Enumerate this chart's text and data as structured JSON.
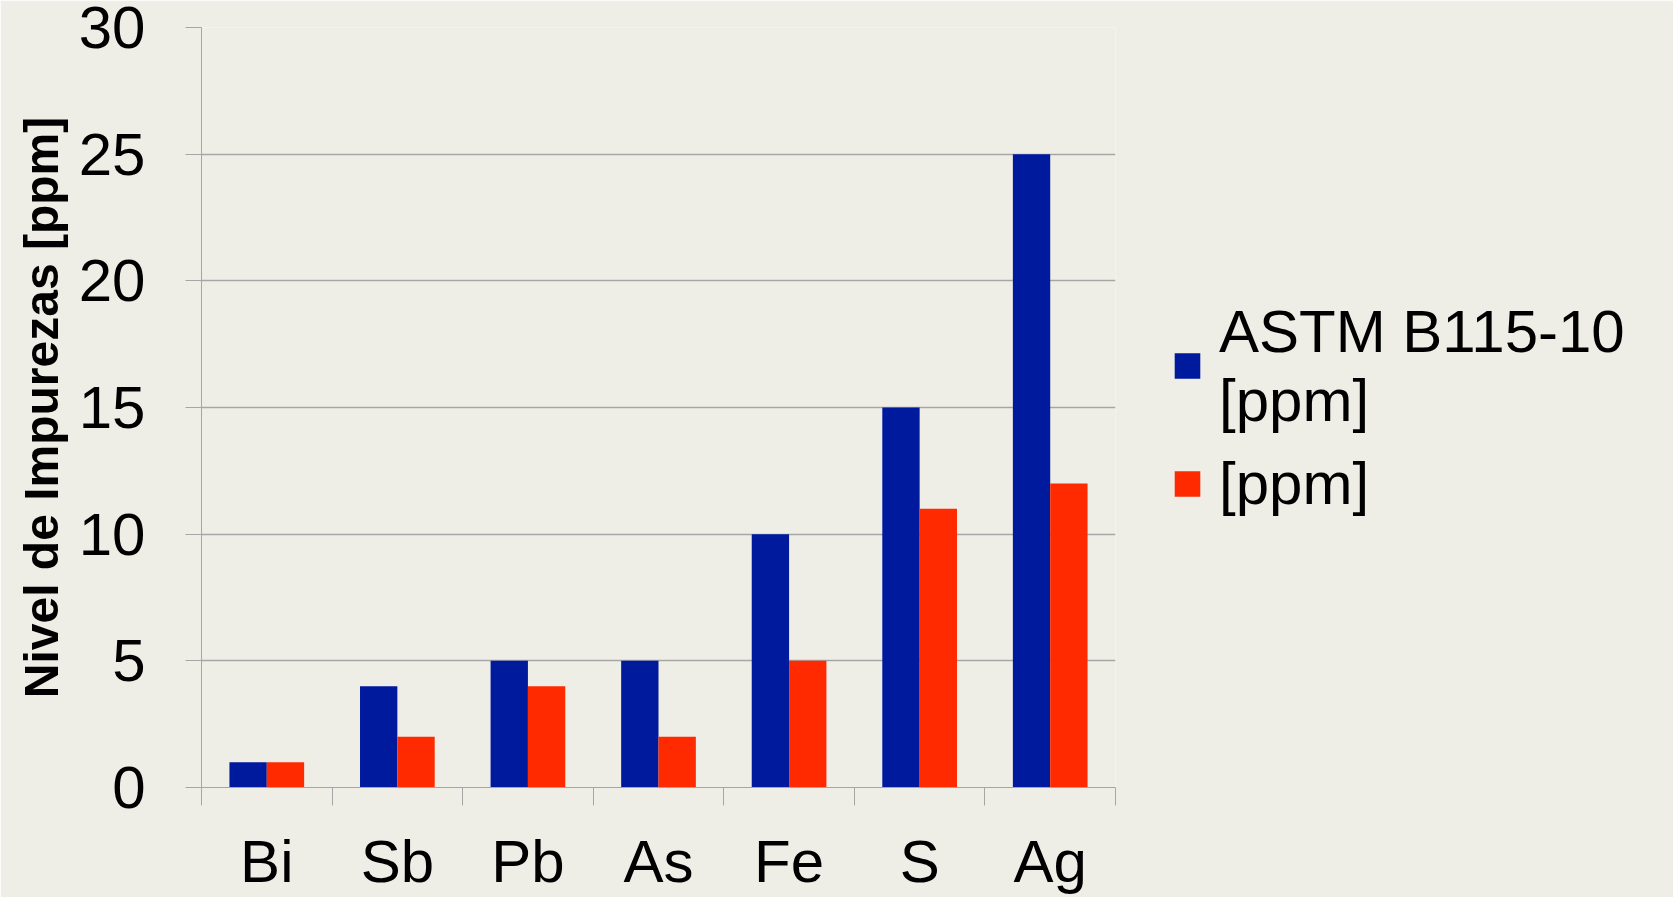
{
  "chart_data": {
    "type": "bar",
    "ylabel": "Nivel de Impurezas [ppm]",
    "categories": [
      "Bi",
      "Sb",
      "Pb",
      "As",
      "Fe",
      "S",
      "Ag"
    ],
    "series": [
      {
        "name": "ASTM B115-10 [ppm]",
        "color": "#001a9e",
        "values": [
          1,
          4,
          5,
          5,
          10,
          15,
          25
        ]
      },
      {
        "name": "[ppm]",
        "color": "#ff2a00",
        "values": [
          1,
          2,
          4,
          2,
          5,
          11,
          12
        ]
      }
    ],
    "ylim": [
      0,
      30
    ],
    "yticks": [
      0,
      5,
      10,
      15,
      20,
      25,
      30
    ],
    "grid": "y",
    "legend": "right"
  }
}
